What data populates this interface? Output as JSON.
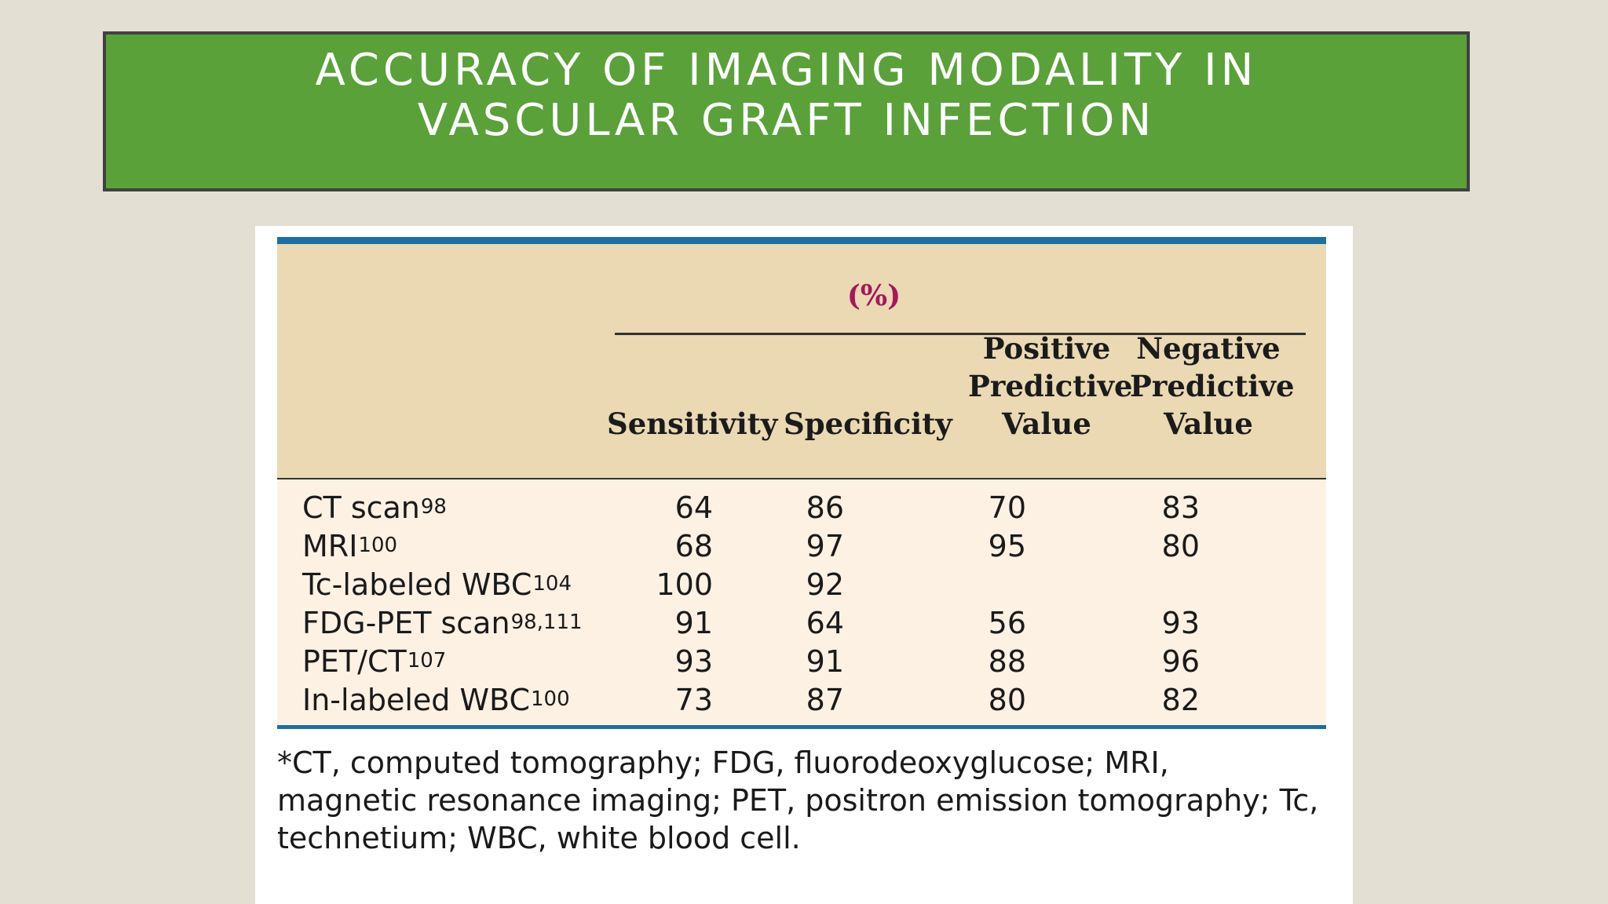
{
  "slide": {
    "title": "ACCURACY OF IMAGING MODALITY IN VASCULAR GRAFT INFECTION"
  },
  "table": {
    "group_label": "(%)",
    "columns": [
      "Sensitivity",
      "Specificity",
      "Positive\nPredictive\nValue",
      "Negative\nPredictive\nValue"
    ],
    "rows": [
      {
        "label": "CT scan",
        "ref": "98",
        "values": [
          "64",
          "86",
          "70",
          "83"
        ]
      },
      {
        "label": "MRI",
        "ref": "100",
        "values": [
          "68",
          "97",
          "95",
          "80"
        ]
      },
      {
        "label": "Tc-labeled WBC",
        "ref": "104",
        "values": [
          "100",
          "92",
          "",
          ""
        ]
      },
      {
        "label": "FDG-PET scan",
        "ref": "98,111",
        "values": [
          "91",
          "64",
          "56",
          "93"
        ]
      },
      {
        "label": "PET/CT",
        "ref": "107",
        "values": [
          "93",
          "91",
          "88",
          "96"
        ]
      },
      {
        "label": "In-labeled WBC",
        "ref": "100",
        "values": [
          "73",
          "87",
          "80",
          "82"
        ]
      }
    ],
    "footnote": "*CT, computed tomography; FDG, fluorodeoxyglucose; MRI,\nmagnetic resonance imaging; PET, positron emission tomography; Tc,\ntechnetium; WBC, white blood cell."
  },
  "colors": {
    "background": "#e3e0d3",
    "title_bar": "#5aa13a",
    "title_border": "#414141",
    "table_header": "#ead9b3",
    "table_body": "#fdf1e4",
    "table_rule": "#1b6fa6",
    "group_label": "#a3195b"
  }
}
